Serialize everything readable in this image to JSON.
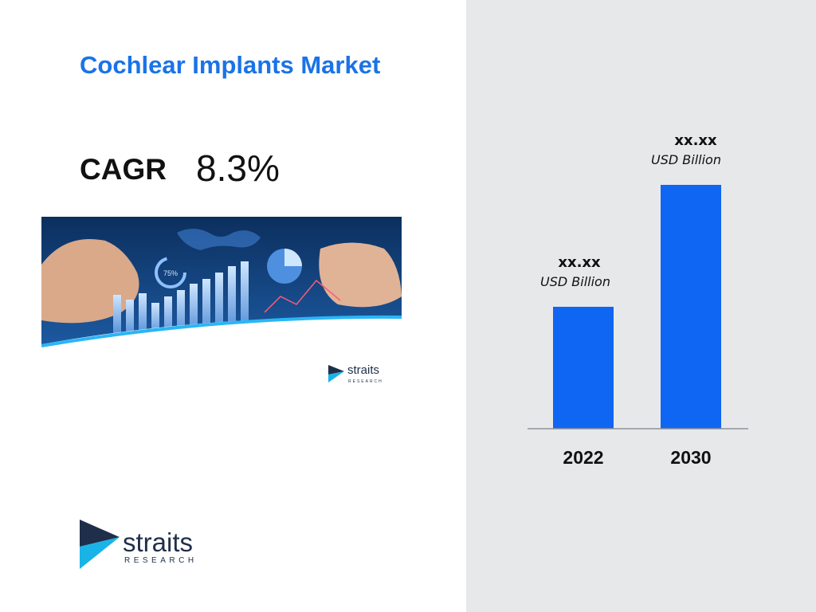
{
  "title": "Cochlear Implants Market",
  "cagr": {
    "label": "CAGR",
    "value": "8.3%"
  },
  "hero_image": {
    "overlay_text": "75%"
  },
  "logo": {
    "word": "straits",
    "sub": "RESEARCH"
  },
  "colors": {
    "accent": "#1a73e8",
    "bar": "#0f66f2",
    "panel": "#e7e8ea",
    "logo_dark": "#1f2f4a",
    "logo_cyan": "#1ab3e8"
  },
  "chart_data": {
    "type": "bar",
    "categories": [
      "2022",
      "2030"
    ],
    "values": [
      1,
      2
    ],
    "data_labels": [
      {
        "value": "xx.xx",
        "unit": "USD Billion"
      },
      {
        "value": "xx.xx",
        "unit": "USD Billion"
      }
    ],
    "values_note_hidden": false,
    "ylim": [
      0,
      2
    ],
    "grid": false,
    "legend": "none"
  }
}
